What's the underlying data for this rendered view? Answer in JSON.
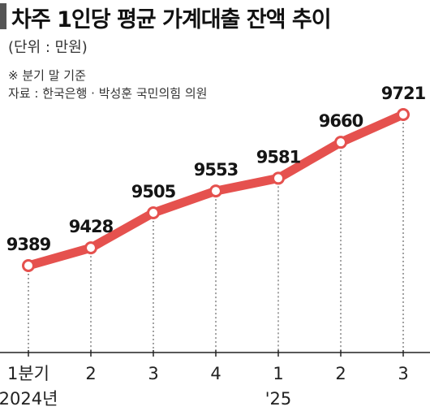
{
  "header": {
    "title": "차주 1인당 평균 가계대출 잔액 추이",
    "unit": "(단위 : 만원)",
    "note": "※ 분기 말 기준",
    "source": "자료 : 한국은행 · 박성훈 국민의힘 의원"
  },
  "colors": {
    "line": "#e5514e",
    "marker_fill": "#ffffff",
    "axis": "#222222",
    "title_mark": "#555555"
  },
  "chart_data": {
    "type": "line",
    "title": "차주 1인당 평균 가계대출 잔액 추이",
    "categories": [
      "1분기",
      "2",
      "3",
      "4",
      "1",
      "2",
      "3"
    ],
    "year_labels": [
      "2024년",
      "",
      "",
      "",
      "'25",
      "",
      ""
    ],
    "values": [
      9389,
      9428,
      9505,
      9553,
      9581,
      9660,
      9721
    ],
    "ylabel": "",
    "xlabel": "",
    "grid": "dashed vertical lines at each point",
    "legend": "none"
  }
}
